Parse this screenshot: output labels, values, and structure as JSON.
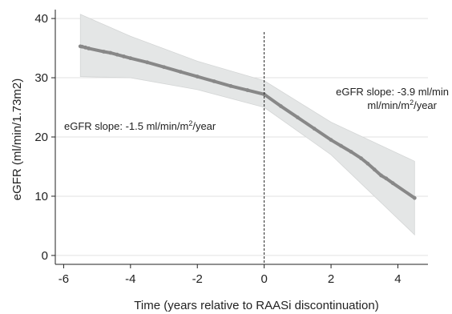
{
  "chart_data": {
    "type": "line",
    "title": "",
    "xlabel": "Time (years relative to RAASi discontinuation)",
    "ylabel": "eGFR (ml/min/1.73m2)",
    "xlim": [
      -6.25,
      4.9
    ],
    "ylim": [
      -1.5,
      41.5
    ],
    "x_ticks": [
      -6,
      -4,
      -2,
      0,
      2,
      4
    ],
    "y_ticks": [
      0,
      10,
      20,
      30,
      40
    ],
    "x_tick_labels": [
      "-6",
      "-4",
      "-2",
      "0",
      "2",
      "4"
    ],
    "y_tick_labels": [
      "0",
      "10",
      "20",
      "30",
      "40"
    ],
    "grid": {
      "horizontal": true,
      "vertical": false
    },
    "reference_line": {
      "x": 0,
      "style": "dashed"
    },
    "series": [
      {
        "points": [
          [
            -5.5,
            35.3
          ],
          [
            -5.45,
            35.25
          ],
          [
            -5.35,
            35.1
          ],
          [
            -5.25,
            34.95
          ],
          [
            -4.8,
            34.4
          ],
          [
            -4.6,
            34.2
          ],
          [
            -4.4,
            33.9
          ],
          [
            -4.2,
            33.6
          ],
          [
            -4.0,
            33.3
          ],
          [
            -3.5,
            32.6
          ],
          [
            -3.0,
            31.8
          ],
          [
            -2.5,
            31.0
          ],
          [
            -2.0,
            30.2
          ],
          [
            -1.5,
            29.4
          ],
          [
            -1.0,
            28.6
          ],
          [
            -0.5,
            27.9
          ],
          [
            0.0,
            27.2
          ],
          [
            0.5,
            25.2
          ],
          [
            1.0,
            23.3
          ],
          [
            1.5,
            21.4
          ],
          [
            2.0,
            19.5
          ],
          [
            2.3,
            18.5
          ],
          [
            2.6,
            17.5
          ],
          [
            2.9,
            16.4
          ],
          [
            3.1,
            15.5
          ],
          [
            3.3,
            14.5
          ],
          [
            3.5,
            13.5
          ],
          [
            3.65,
            13.0
          ],
          [
            3.85,
            12.2
          ],
          [
            4.5,
            9.7
          ]
        ],
        "ci_upper": [
          [
            -5.5,
            40.7
          ],
          [
            -4.0,
            37.0
          ],
          [
            -2.0,
            32.8
          ],
          [
            0.0,
            29.5
          ],
          [
            2.0,
            22.5
          ],
          [
            4.5,
            15.9
          ]
        ],
        "ci_lower": [
          [
            -5.5,
            30.2
          ],
          [
            -4.0,
            30.0
          ],
          [
            -2.0,
            28.0
          ],
          [
            0.0,
            25.0
          ],
          [
            2.0,
            17.0
          ],
          [
            4.5,
            3.5
          ]
        ],
        "color": "#888888",
        "band_color": "#e4e6e6"
      }
    ],
    "annotations": [
      {
        "parts": [
          "eGFR slope: -1.5 ml/min/m",
          "2",
          "/year"
        ]
      },
      {
        "line1": "eGFR slope: -3.9 ml/min",
        "parts2": [
          "ml/min/m",
          "2",
          "/year"
        ]
      }
    ]
  }
}
